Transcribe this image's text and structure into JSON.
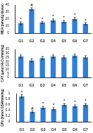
{
  "chart_data": [
    {
      "type": "bar",
      "y_label": "MDA (nmol/g tissue)",
      "categories": [
        "G1",
        "G2",
        "G3",
        "G4",
        "G5",
        "G6",
        "G7"
      ],
      "values": [
        14,
        34,
        15,
        18,
        16,
        20,
        13
      ],
      "errors": [
        2,
        2,
        1.5,
        2,
        2,
        2,
        1.5
      ],
      "annotations": [
        "*",
        "#",
        "*",
        "*",
        "*",
        "*",
        "*"
      ],
      "color": "#2e7fd6",
      "ylim": [
        0,
        40
      ],
      "yticks": [
        0,
        10,
        20,
        30,
        40
      ],
      "grid": false
    },
    {
      "type": "bar",
      "y_label": "CAT (µmol H₂O₂/min/mg)",
      "categories": [
        "G1",
        "G2",
        "G3",
        "G4",
        "G5",
        "G6",
        "G7"
      ],
      "values": [
        26,
        21,
        24,
        26,
        25,
        27,
        25
      ],
      "errors": [
        2,
        2,
        2,
        2,
        2,
        2,
        2
      ],
      "color": "#2e7fd6",
      "ylim": [
        0,
        35
      ],
      "yticks": [
        0,
        5,
        10,
        15,
        20,
        25,
        30,
        35
      ],
      "grid": false
    },
    {
      "type": "bar",
      "y_label": "GPx (mmol GSH/min/mg)",
      "categories": [
        "G1",
        "G2",
        "G3",
        "G4",
        "G5",
        "G6",
        "G7"
      ],
      "values": [
        0.9,
        0.35,
        0.5,
        0.45,
        0.6,
        0.55,
        0.6
      ],
      "errors": [
        0.06,
        0.04,
        0.05,
        0.05,
        0.05,
        0.05,
        0.05
      ],
      "annotations": [
        "*",
        "#",
        "*",
        "*",
        "*",
        "*",
        "*"
      ],
      "color": "#2e7fd6",
      "ylim": [
        0,
        1
      ],
      "yticks": [
        0,
        0.2,
        0.4,
        0.6,
        0.8,
        1
      ],
      "grid": false
    }
  ]
}
